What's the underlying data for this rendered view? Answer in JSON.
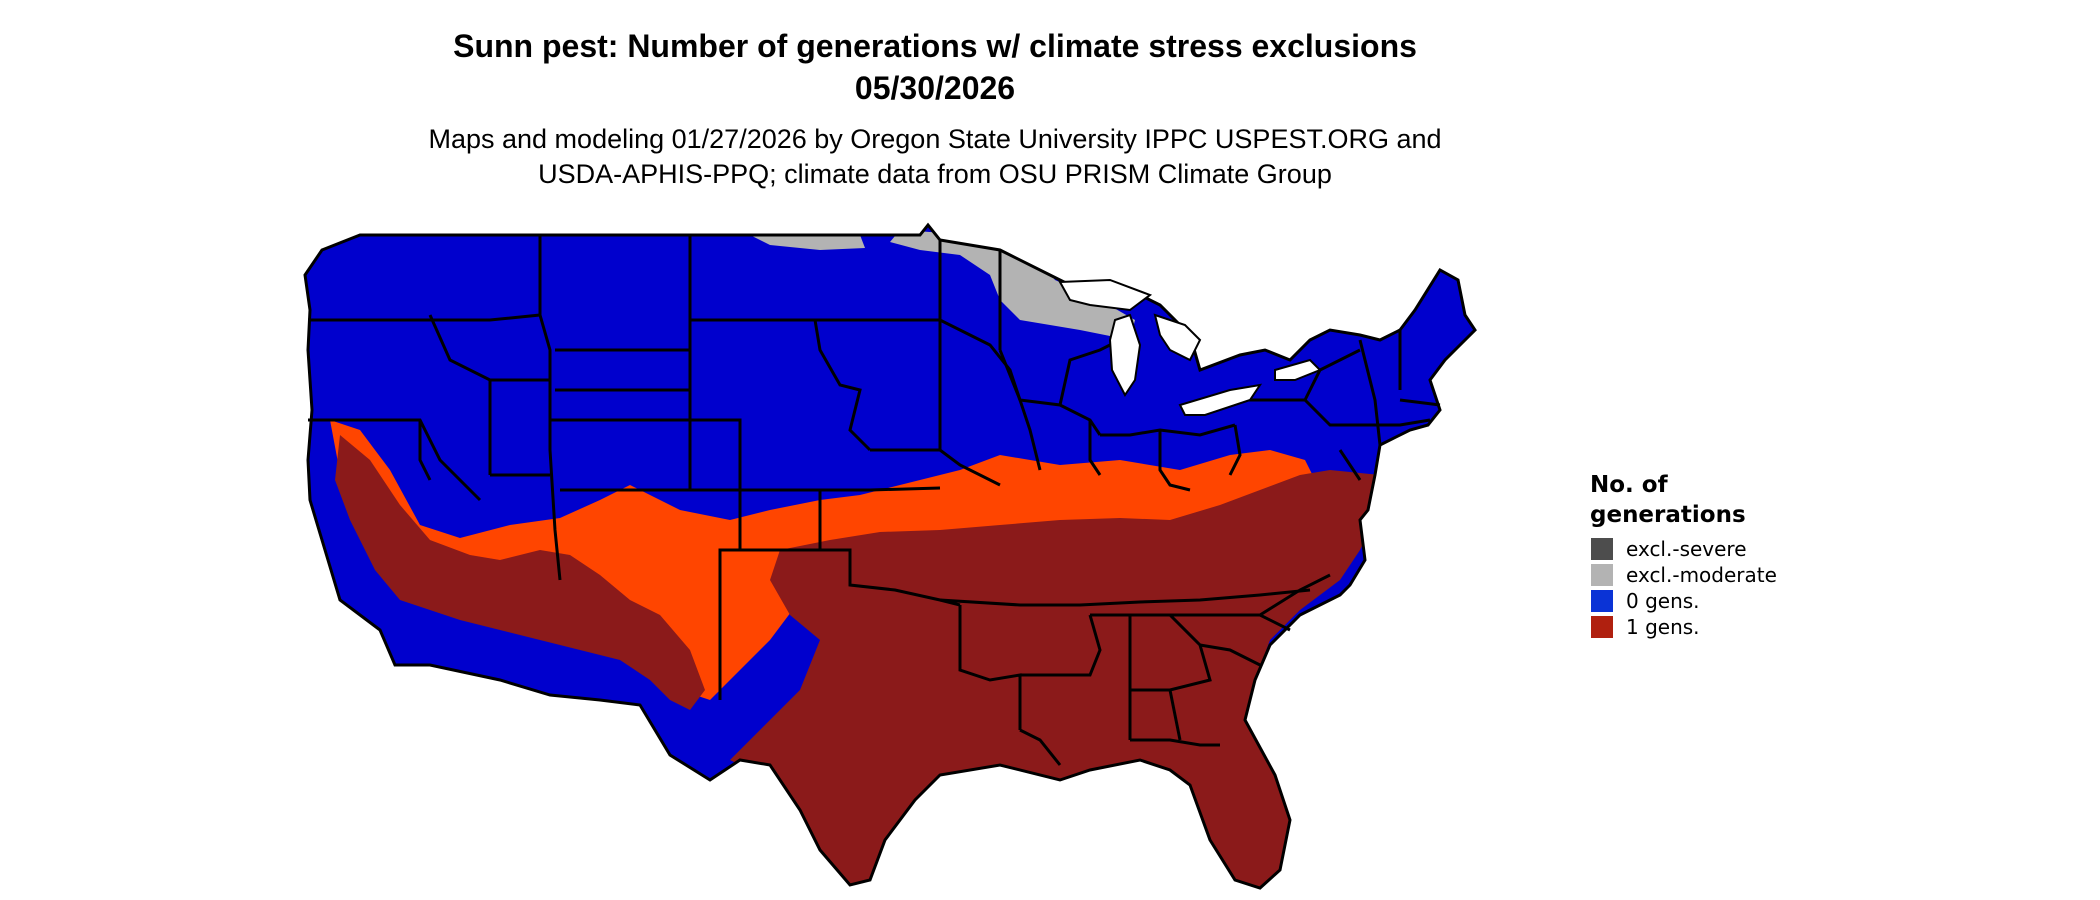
{
  "title_line1": "Sunn pest: Number of generations w/ climate stress exclusions",
  "title_line2": "05/30/2026",
  "subtitle_line1": "Maps and modeling 01/27/2026 by Oregon State University IPPC USPEST.ORG and",
  "subtitle_line2": "USDA-APHIS-PPQ; climate data from OSU PRISM Climate Group",
  "legend": {
    "title_line1": "No. of",
    "title_line2": "generations",
    "items": [
      {
        "label": "excl.-severe",
        "color": "#4d4d4d"
      },
      {
        "label": "excl.-moderate",
        "color": "#b3b3b3"
      },
      {
        "label": "0 gens.",
        "color": "#0a33d6"
      },
      {
        "label": "1 gens.",
        "color": "#b0200f"
      }
    ]
  },
  "map_colors": {
    "zero_gens_fill": "#0000cd",
    "one_gen_fill": "#8b1a1a",
    "transition_fill": "#ff4500",
    "excl_moderate_fill": "#b3b3b3",
    "state_border": "#000000"
  }
}
